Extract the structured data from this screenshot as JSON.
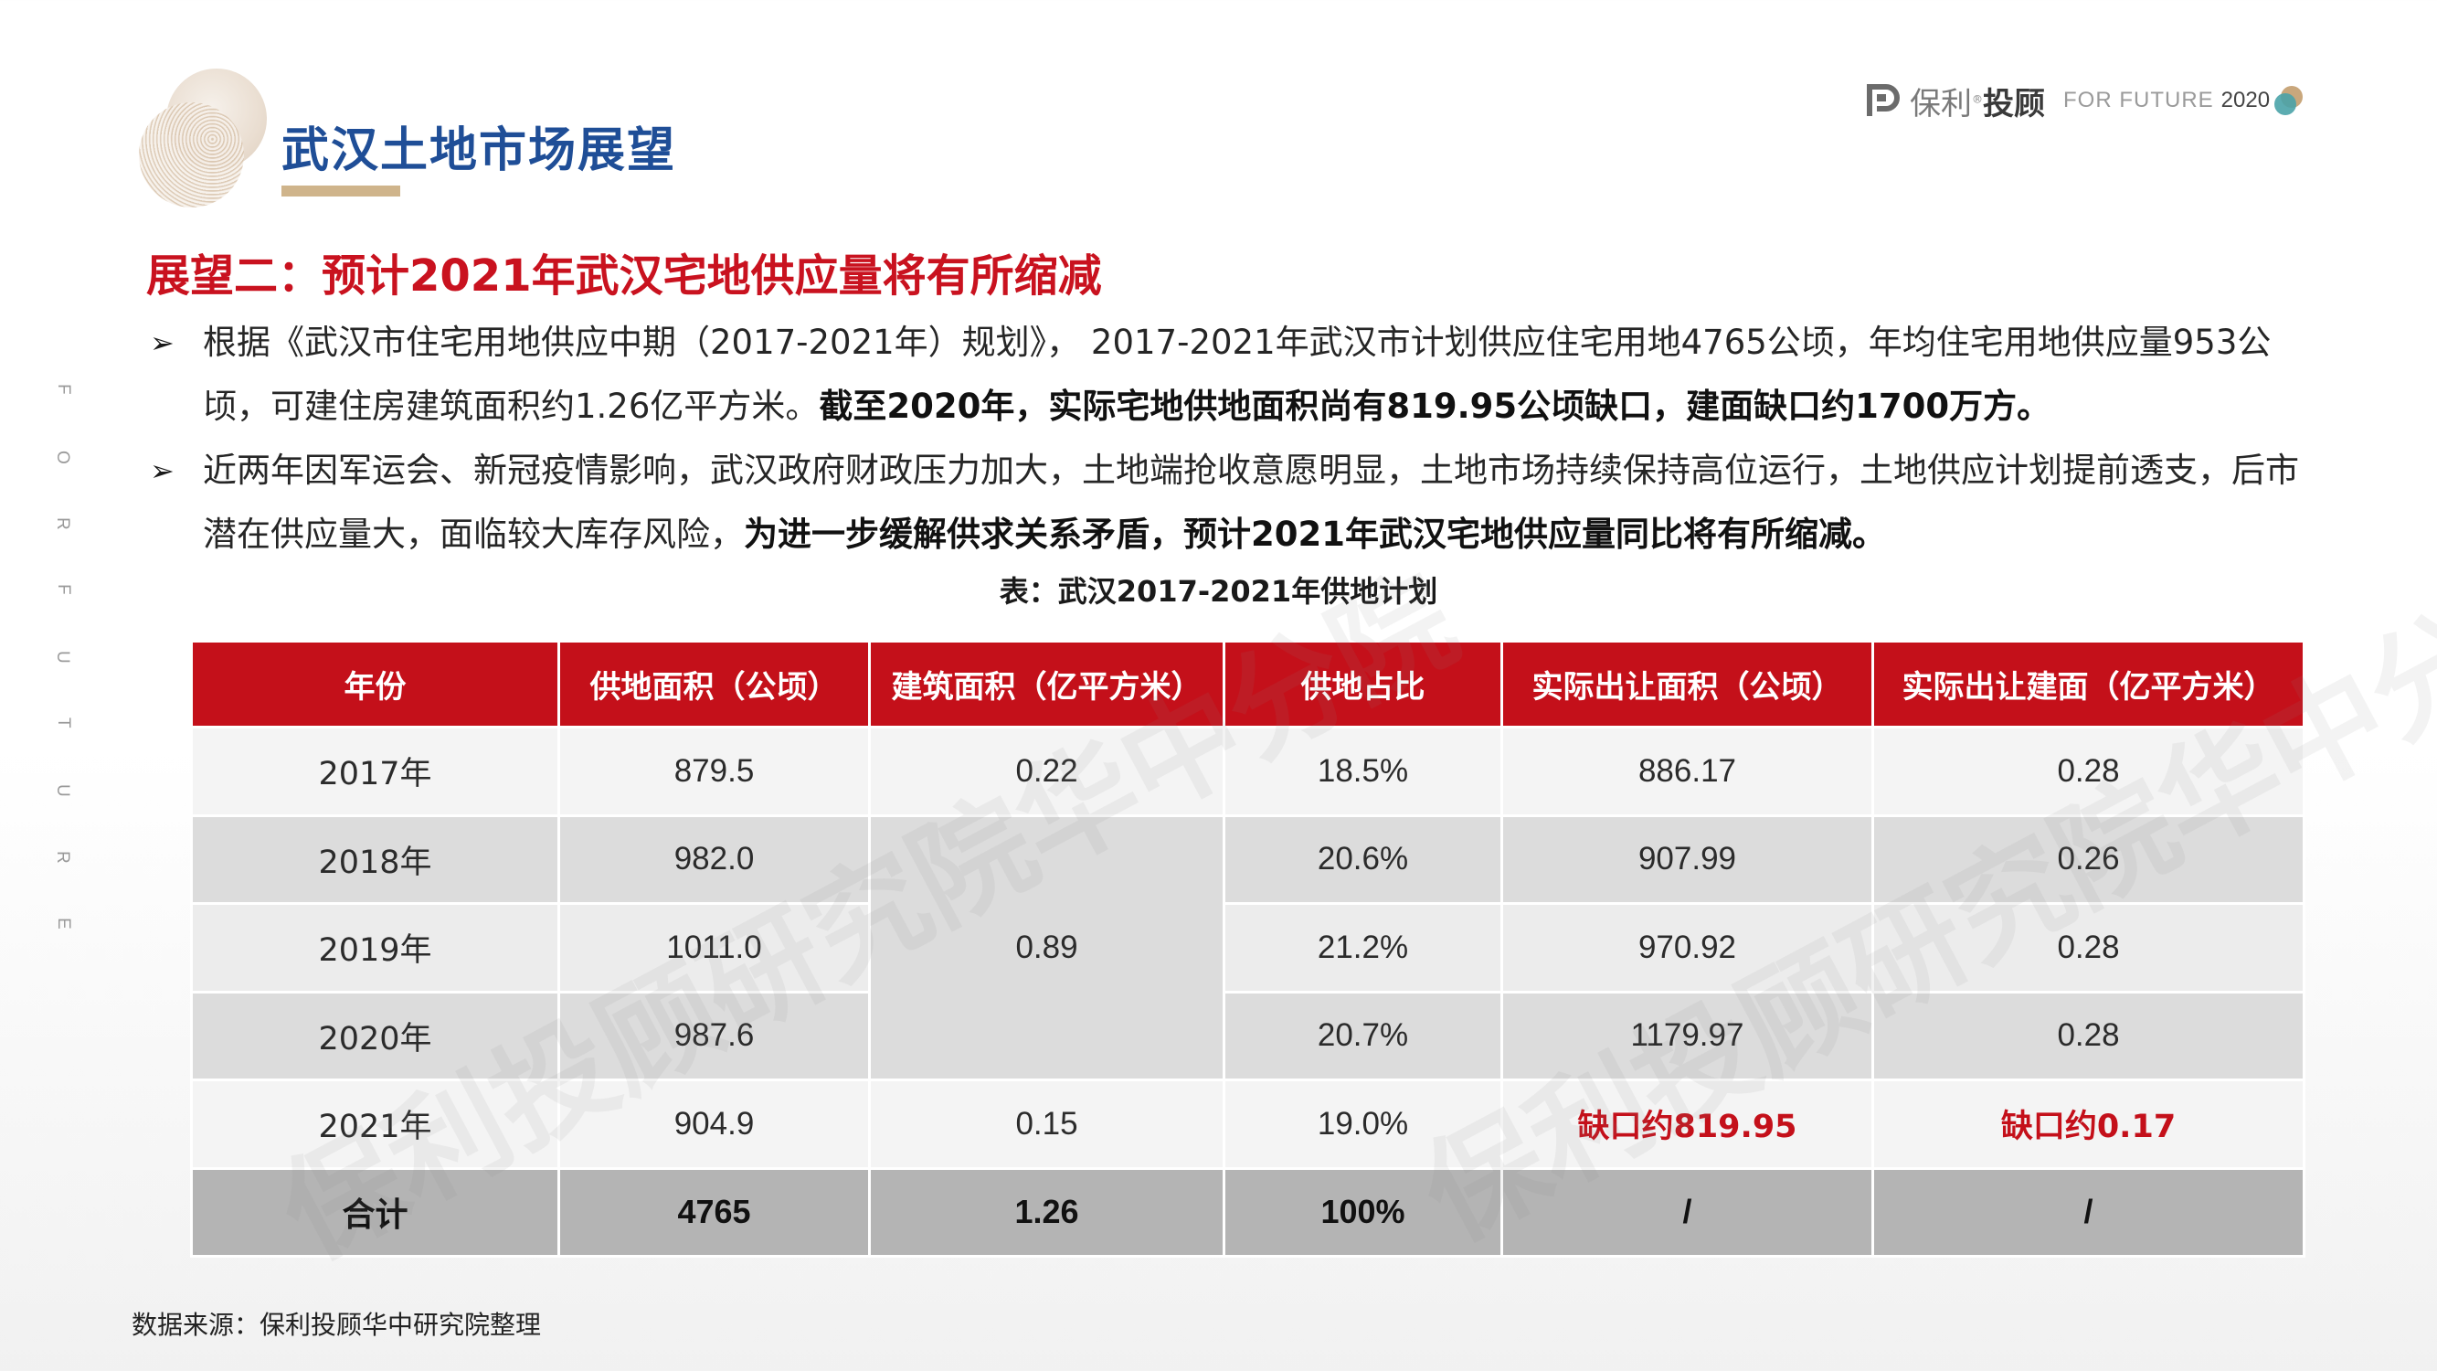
{
  "header": {
    "title": "武汉土地市场展望",
    "logo": {
      "brand_light": "保利",
      "brand_bold": "投顾",
      "registered": "®",
      "tagline": "FOR FUTURE",
      "year": "2020",
      "colors": {
        "accent_gold": "#cfb48b",
        "accent_teal": "#4aa3a8"
      }
    }
  },
  "side_text": [
    "F",
    "O",
    "R",
    "F",
    "U",
    "T",
    "U",
    "R",
    "E"
  ],
  "subtitle": "展望二：预计2021年武汉宅地供应量将有所缩减",
  "bullets": [
    {
      "marker": "➢",
      "plain": "根据《武汉市住宅用地供应中期（2017-2021年）规划》， 2017-2021年武汉市计划供应住宅用地4765公顷，年均住宅用地供应量953公顷，可建住房建筑面积约1.26亿平方米。",
      "bold": "截至2020年，实际宅地供地面积尚有819.95公顷缺口，建面缺口约1700万方。"
    },
    {
      "marker": "➢",
      "plain": "近两年因军运会、新冠疫情影响，武汉政府财政压力加大，土地端抢收意愿明显，土地市场持续保持高位运行，土地供应计划提前透支，后市潜在供应量大，面临较大库存风险，",
      "bold": "为进一步缓解供求关系矛盾，预计2021年武汉宅地供应量同比将有所缩减。"
    }
  ],
  "table": {
    "caption": "表：武汉2017-2021年供地计划",
    "headers": [
      "年份",
      "供地面积（公顷）",
      "建筑面积（亿平方米）",
      "供地占比",
      "实际出让面积（公顷）",
      "实际出让建面（亿平方米）"
    ],
    "rows": [
      {
        "year": "2017年",
        "area": "879.5",
        "gfa": "0.22",
        "share": "18.5%",
        "actual_area": "886.17",
        "actual_gfa": "0.28"
      },
      {
        "year": "2018年",
        "area": "982.0",
        "gfa": "0.89",
        "share": "20.6%",
        "actual_area": "907.99",
        "actual_gfa": "0.26"
      },
      {
        "year": "2019年",
        "area": "1011.0",
        "share": "21.2%",
        "actual_area": "970.92",
        "actual_gfa": "0.28"
      },
      {
        "year": "2020年",
        "area": "987.6",
        "share": "20.7%",
        "actual_area": "1179.97",
        "actual_gfa": "0.28"
      },
      {
        "year": "2021年",
        "area": "904.9",
        "gfa": "0.15",
        "share": "19.0%",
        "actual_area": "缺口约819.95",
        "actual_gfa": "缺口约0.17"
      }
    ],
    "total": {
      "label": "合计",
      "area": "4765",
      "gfa": "1.26",
      "share": "100%",
      "actual_area": "/",
      "actual_gfa": "/"
    },
    "colors": {
      "header_bg": "#c4101a",
      "deficit_text": "#c4101a",
      "total_bg": "#b4b4b4"
    }
  },
  "source": "数据来源：保利投顾华中研究院整理"
}
